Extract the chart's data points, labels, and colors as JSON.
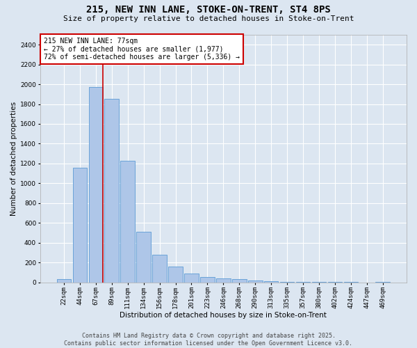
{
  "title_line1": "215, NEW INN LANE, STOKE-ON-TRENT, ST4 8PS",
  "title_line2": "Size of property relative to detached houses in Stoke-on-Trent",
  "xlabel": "Distribution of detached houses by size in Stoke-on-Trent",
  "ylabel": "Number of detached properties",
  "categories": [
    "22sqm",
    "44sqm",
    "67sqm",
    "89sqm",
    "111sqm",
    "134sqm",
    "156sqm",
    "178sqm",
    "201sqm",
    "223sqm",
    "246sqm",
    "268sqm",
    "290sqm",
    "313sqm",
    "335sqm",
    "357sqm",
    "380sqm",
    "402sqm",
    "424sqm",
    "447sqm",
    "469sqm"
  ],
  "values": [
    30,
    1160,
    1970,
    1850,
    1230,
    510,
    275,
    160,
    90,
    50,
    40,
    30,
    20,
    10,
    5,
    3,
    2,
    1,
    1,
    0,
    5
  ],
  "bar_color": "#aec6e8",
  "bar_edge_color": "#5b9bd5",
  "bg_color": "#dce6f1",
  "grid_color": "#ffffff",
  "vline_index": 2,
  "vline_color": "#cc0000",
  "annotation_text": "215 NEW INN LANE: 77sqm\n← 27% of detached houses are smaller (1,977)\n72% of semi-detached houses are larger (5,336) →",
  "ann_box_facecolor": "#ffffff",
  "ann_box_edgecolor": "#cc0000",
  "ylim": [
    0,
    2500
  ],
  "yticks": [
    0,
    200,
    400,
    600,
    800,
    1000,
    1200,
    1400,
    1600,
    1800,
    2000,
    2200,
    2400
  ],
  "title_fontsize": 10,
  "subtitle_fontsize": 8,
  "axis_label_fontsize": 7.5,
  "tick_fontsize": 6.5,
  "ann_fontsize": 7,
  "footer_fontsize": 6,
  "footer_text": "Contains HM Land Registry data © Crown copyright and database right 2025.\nContains public sector information licensed under the Open Government Licence v3.0."
}
